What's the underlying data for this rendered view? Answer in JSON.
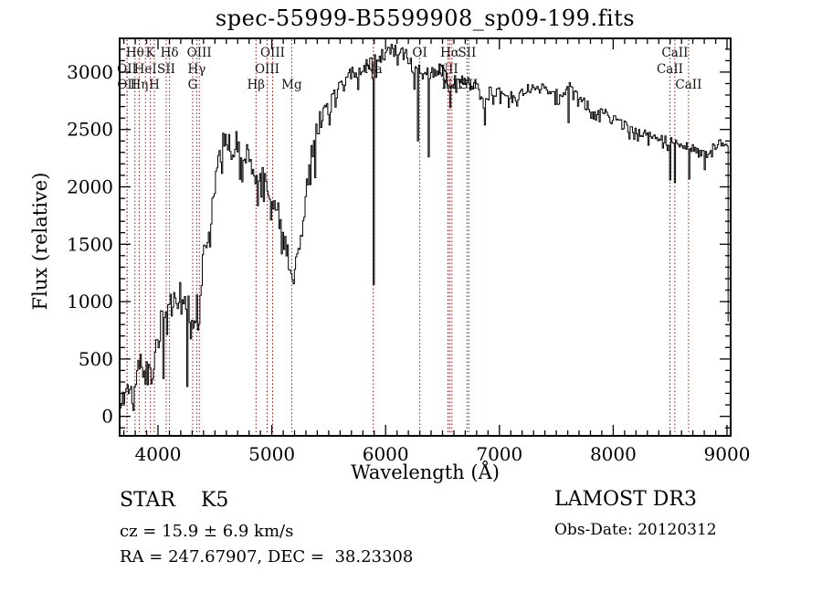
{
  "title": "spec-55999-B5599908_sp09-199.fits",
  "annotations": {
    "object_type_line": "STAR    K5",
    "cz_line": "cz = 15.9 ± 6.9 km/s",
    "coords_line": "RA = 247.67907, DEC =  38.23308",
    "survey": "LAMOST DR3",
    "obs_date_line": "Obs-Date: 20120312"
  },
  "chart_data": {
    "type": "line",
    "title": "spec-55999-B5599908_sp09-199.fits",
    "xlabel": "Wavelength (Å)",
    "ylabel": "Flux (relative)",
    "xlim": [
      3663,
      9032
    ],
    "ylim": [
      -170,
      3294
    ],
    "x_ticks": [
      4000,
      5000,
      6000,
      7000,
      8000,
      9000
    ],
    "y_ticks": [
      0,
      500,
      1000,
      1500,
      2000,
      2500,
      3000
    ],
    "x_minor_step": 100,
    "y_minor_step": 100,
    "grid": false,
    "line_color": "#000000",
    "marker_color": "#8b1a1a",
    "spectral_lines": [
      {
        "label": "OII",
        "wavelength": 3727,
        "row": 2
      },
      {
        "label": "OII",
        "wavelength": 3729,
        "row": 3
      },
      {
        "label": "Hθ",
        "wavelength": 3798,
        "row": 1
      },
      {
        "label": "Hη",
        "wavelength": 3835,
        "row": 3
      },
      {
        "label": "HeI",
        "wavelength": 3889,
        "row": 2
      },
      {
        "label": "K",
        "wavelength": 3933,
        "row": 1
      },
      {
        "label": "H",
        "wavelength": 3968,
        "row": 3
      },
      {
        "label": "SII",
        "wavelength": 4072,
        "row": 2
      },
      {
        "label": "Hδ",
        "wavelength": 4101,
        "row": 1
      },
      {
        "label": "G",
        "wavelength": 4305,
        "row": 3
      },
      {
        "label": "Hγ",
        "wavelength": 4340,
        "row": 2
      },
      {
        "label": "OIII",
        "wavelength": 4363,
        "row": 1
      },
      {
        "label": "Hβ",
        "wavelength": 4861,
        "row": 3
      },
      {
        "label": "OIII",
        "wavelength": 4959,
        "row": 2
      },
      {
        "label": "OIII",
        "wavelength": 5007,
        "row": 1
      },
      {
        "label": "Mg",
        "wavelength": 5175,
        "row": 3
      },
      {
        "label": "Na",
        "wavelength": 5892,
        "row": 2
      },
      {
        "label": "OI",
        "wavelength": 6300,
        "row": 1
      },
      {
        "label": "NII",
        "wavelength": 6548,
        "row": 2
      },
      {
        "label": "Hα",
        "wavelength": 6563,
        "row": 1
      },
      {
        "label": "NII",
        "wavelength": 6583,
        "row": 3
      },
      {
        "label": "SII",
        "wavelength": 6716,
        "row": 1
      },
      {
        "label": "SII",
        "wavelength": 6731,
        "row": 3
      },
      {
        "label": "CaII",
        "wavelength": 8498,
        "row": 2
      },
      {
        "label": "CaII",
        "wavelength": 8542,
        "row": 1
      },
      {
        "label": "CaII",
        "wavelength": 8662,
        "row": 3
      }
    ],
    "envelope": [
      [
        3663,
        60,
        60
      ],
      [
        3687,
        230,
        120
      ],
      [
        3711,
        110,
        90
      ],
      [
        3735,
        280,
        130
      ],
      [
        3759,
        150,
        110
      ],
      [
        3783,
        260,
        120
      ],
      [
        3807,
        340,
        140
      ],
      [
        3831,
        430,
        150
      ],
      [
        3855,
        390,
        140
      ],
      [
        3879,
        340,
        130
      ],
      [
        3903,
        360,
        130
      ],
      [
        3927,
        330,
        120
      ],
      [
        3951,
        420,
        130
      ],
      [
        3975,
        530,
        140
      ],
      [
        4000,
        660,
        150
      ],
      [
        4024,
        810,
        160
      ],
      [
        4048,
        950,
        170
      ],
      [
        4072,
        980,
        170
      ],
      [
        4096,
        1000,
        170
      ],
      [
        4144,
        1000,
        160
      ],
      [
        4193,
        1010,
        160
      ],
      [
        4241,
        1000,
        160
      ],
      [
        4289,
        900,
        150
      ],
      [
        4305,
        820,
        140
      ],
      [
        4329,
        890,
        150
      ],
      [
        4361,
        1080,
        160
      ],
      [
        4393,
        1300,
        160
      ],
      [
        4425,
        1520,
        150
      ],
      [
        4457,
        1750,
        150
      ],
      [
        4490,
        1980,
        140
      ],
      [
        4522,
        2150,
        140
      ],
      [
        4554,
        2320,
        130
      ],
      [
        4586,
        2420,
        130
      ],
      [
        4618,
        2380,
        130
      ],
      [
        4650,
        2310,
        130
      ],
      [
        4682,
        2380,
        130
      ],
      [
        4714,
        2290,
        130
      ],
      [
        4746,
        2270,
        130
      ],
      [
        4778,
        2300,
        125
      ],
      [
        4810,
        2230,
        125
      ],
      [
        4843,
        2160,
        120
      ],
      [
        4867,
        1990,
        120
      ],
      [
        4891,
        2100,
        120
      ],
      [
        4923,
        2060,
        120
      ],
      [
        4955,
        1970,
        120
      ],
      [
        4987,
        1900,
        120
      ],
      [
        5019,
        1830,
        120
      ],
      [
        5051,
        1750,
        130
      ],
      [
        5083,
        1620,
        130
      ],
      [
        5115,
        1480,
        130
      ],
      [
        5148,
        1330,
        120
      ],
      [
        5172,
        1180,
        110
      ],
      [
        5196,
        1220,
        110
      ],
      [
        5228,
        1400,
        110
      ],
      [
        5260,
        1620,
        110
      ],
      [
        5292,
        1880,
        110
      ],
      [
        5324,
        2120,
        110
      ],
      [
        5356,
        2350,
        110
      ],
      [
        5389,
        2500,
        110
      ],
      [
        5421,
        2570,
        105
      ],
      [
        5461,
        2650,
        100
      ],
      [
        5501,
        2700,
        100
      ],
      [
        5549,
        2760,
        100
      ],
      [
        5597,
        2830,
        100
      ],
      [
        5645,
        2900,
        95
      ],
      [
        5693,
        2950,
        95
      ],
      [
        5741,
        3000,
        90
      ],
      [
        5790,
        3030,
        90
      ],
      [
        5838,
        3060,
        90
      ],
      [
        5886,
        3080,
        90
      ],
      [
        5934,
        3100,
        90
      ],
      [
        5982,
        3130,
        90
      ],
      [
        6030,
        3160,
        85
      ],
      [
        6078,
        3190,
        85
      ],
      [
        6127,
        3180,
        85
      ],
      [
        6175,
        3130,
        85
      ],
      [
        6223,
        3050,
        90
      ],
      [
        6271,
        2960,
        95
      ],
      [
        6319,
        3000,
        90
      ],
      [
        6367,
        2940,
        95
      ],
      [
        6416,
        2980,
        85
      ],
      [
        6464,
        3000,
        80
      ],
      [
        6512,
        2990,
        80
      ],
      [
        6560,
        2870,
        80
      ],
      [
        6608,
        2950,
        75
      ],
      [
        6656,
        2930,
        70
      ],
      [
        6705,
        2900,
        70
      ],
      [
        6753,
        2880,
        70
      ],
      [
        6801,
        2850,
        70
      ],
      [
        6849,
        2720,
        80
      ],
      [
        6897,
        2800,
        65
      ],
      [
        6946,
        2830,
        60
      ],
      [
        6994,
        2820,
        60
      ],
      [
        7042,
        2810,
        60
      ],
      [
        7090,
        2780,
        60
      ],
      [
        7138,
        2730,
        65
      ],
      [
        7186,
        2800,
        55
      ],
      [
        7250,
        2840,
        55
      ],
      [
        7315,
        2830,
        55
      ],
      [
        7379,
        2850,
        55
      ],
      [
        7443,
        2820,
        55
      ],
      [
        7507,
        2800,
        55
      ],
      [
        7571,
        2810,
        60
      ],
      [
        7636,
        2890,
        65
      ],
      [
        7700,
        2780,
        60
      ],
      [
        7764,
        2700,
        60
      ],
      [
        7828,
        2680,
        55
      ],
      [
        7892,
        2650,
        55
      ],
      [
        7956,
        2600,
        55
      ],
      [
        8021,
        2570,
        55
      ],
      [
        8085,
        2530,
        60
      ],
      [
        8149,
        2500,
        55
      ],
      [
        8213,
        2480,
        50
      ],
      [
        8277,
        2450,
        50
      ],
      [
        8341,
        2440,
        50
      ],
      [
        8405,
        2420,
        50
      ],
      [
        8469,
        2400,
        50
      ],
      [
        8525,
        2380,
        50
      ],
      [
        8565,
        2360,
        50
      ],
      [
        8630,
        2350,
        45
      ],
      [
        8686,
        2340,
        45
      ],
      [
        8742,
        2300,
        50
      ],
      [
        8806,
        2280,
        55
      ],
      [
        8854,
        2320,
        45
      ],
      [
        8902,
        2360,
        40
      ],
      [
        8950,
        2380,
        40
      ],
      [
        8995,
        2390,
        35
      ],
      [
        9005,
        2370,
        30
      ],
      [
        9012,
        20,
        15
      ]
    ],
    "absorption_spikes": [
      [
        4046,
        330
      ],
      [
        4257,
        260
      ],
      [
        5380,
        2080
      ],
      [
        5892,
        1150
      ],
      [
        6280,
        2400
      ],
      [
        6370,
        2260
      ],
      [
        6563,
        2690
      ],
      [
        6869,
        2540
      ],
      [
        7601,
        2560
      ],
      [
        8498,
        2060
      ],
      [
        8542,
        2040
      ],
      [
        8662,
        2070
      ],
      [
        8804,
        2150
      ]
    ]
  }
}
